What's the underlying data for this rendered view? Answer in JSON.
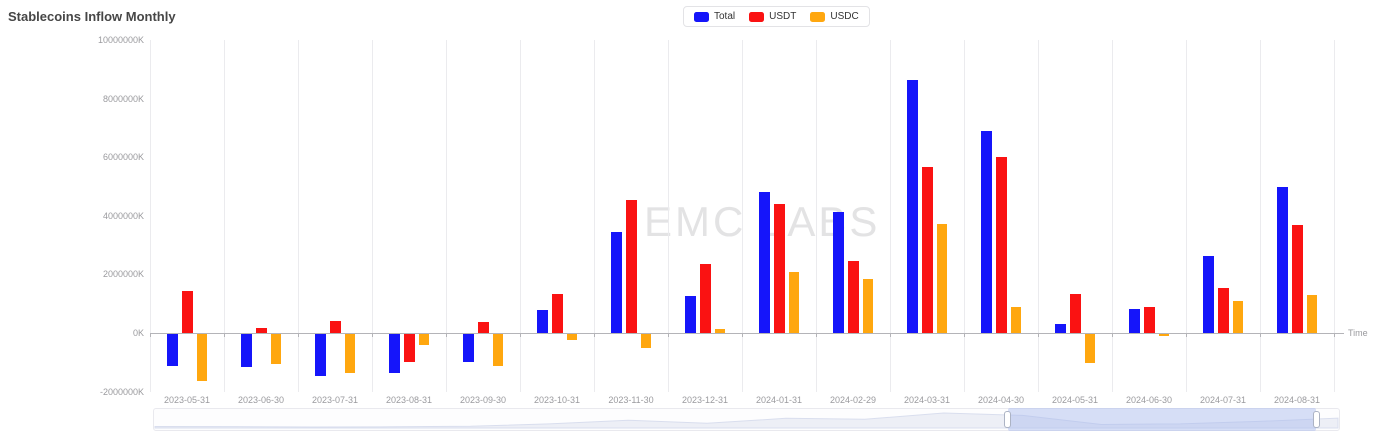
{
  "page": {
    "title": "Stablecoins Inflow Monthly"
  },
  "watermark": "EMC LABS",
  "legend": {
    "items": [
      {
        "label": "Total",
        "color": "#1515fa"
      },
      {
        "label": "USDT",
        "color": "#fa1212"
      },
      {
        "label": "USDC",
        "color": "#ffa70f"
      }
    ]
  },
  "chart_data": {
    "type": "bar",
    "title": "Stablecoins Inflow Monthly",
    "xlabel": "Time",
    "ylabel": "",
    "unit": "K",
    "ylim": [
      -2000000,
      10000000
    ],
    "grid": "vertical-only",
    "legend_position": "top-center",
    "categories": [
      "2023-05-31",
      "2023-06-30",
      "2023-07-31",
      "2023-08-31",
      "2023-09-30",
      "2023-10-31",
      "2023-11-30",
      "2023-12-31",
      "2024-01-31",
      "2024-02-29",
      "2024-03-31",
      "2024-04-30",
      "2024-05-31",
      "2024-06-30",
      "2024-07-31",
      "2024-08-31"
    ],
    "series": [
      {
        "name": "Total",
        "color": "#1515fa",
        "values": [
          -1100000,
          -1130000,
          -1450000,
          -1340000,
          -950000,
          780000,
          3450000,
          1250000,
          4800000,
          4120000,
          8650000,
          6900000,
          320000,
          820000,
          2620000,
          5000000
        ]
      },
      {
        "name": "USDT",
        "color": "#fa1212",
        "values": [
          1450000,
          160000,
          420000,
          -970000,
          380000,
          1340000,
          4550000,
          2350000,
          4400000,
          2470000,
          5680000,
          6000000,
          1320000,
          890000,
          1530000,
          3700000
        ]
      },
      {
        "name": "USDC",
        "color": "#ffa70f",
        "values": [
          -1600000,
          -1030000,
          -1340000,
          -360000,
          -1080000,
          -220000,
          -470000,
          150000,
          2080000,
          1850000,
          3720000,
          880000,
          -990000,
          -40000,
          1080000,
          1280000
        ]
      }
    ],
    "y_ticks": [
      {
        "label": "10000000K",
        "value": 10000000
      },
      {
        "label": "8000000K",
        "value": 8000000
      },
      {
        "label": "6000000K",
        "value": 6000000
      },
      {
        "label": "4000000K",
        "value": 4000000
      },
      {
        "label": "2000000K",
        "value": 2000000
      },
      {
        "label": "0K",
        "value": 0
      },
      {
        "label": "-2000000K",
        "value": -2000000
      }
    ]
  },
  "data_zoom": {
    "start_pct": 72,
    "end_pct": 98
  }
}
